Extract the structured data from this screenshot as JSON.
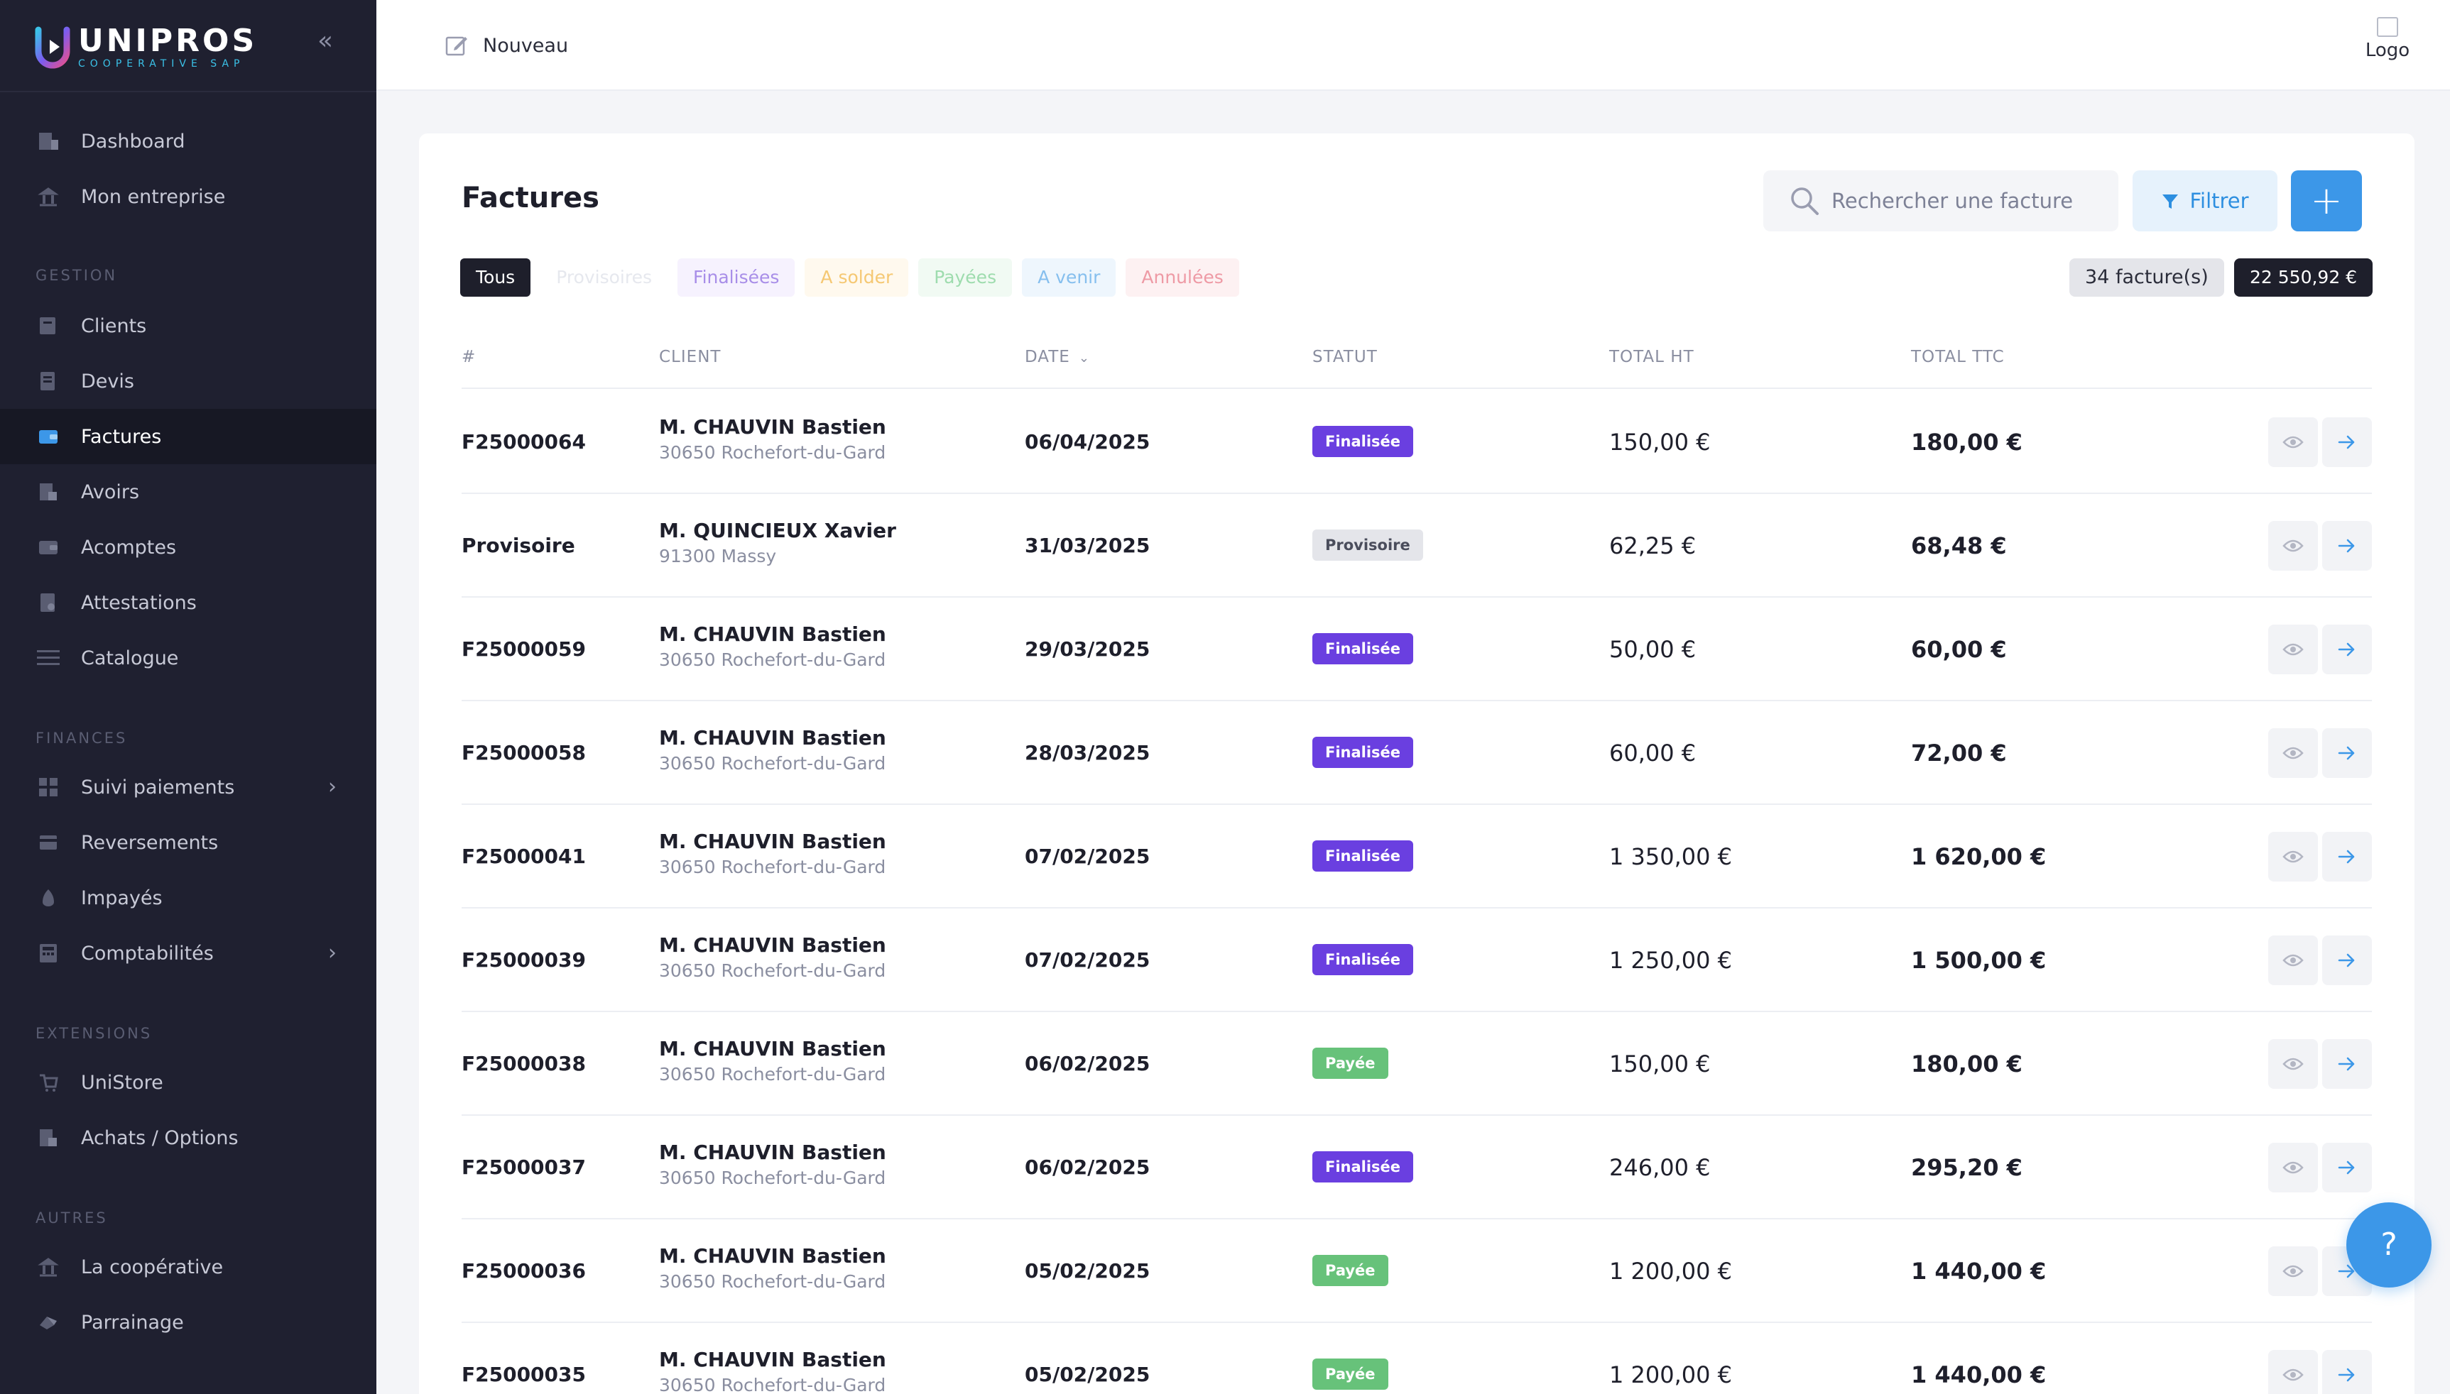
{
  "brand": {
    "name": "UNIPROS",
    "subtitle": "COOPERATIVE SAP"
  },
  "sidebar": {
    "top_items": [
      {
        "label": "Dashboard",
        "icon": "dashboard-icon"
      },
      {
        "label": "Mon entreprise",
        "icon": "building-icon"
      }
    ],
    "gestion_label": "GESTION",
    "gestion_items": [
      {
        "label": "Clients",
        "icon": "clients-icon"
      },
      {
        "label": "Devis",
        "icon": "quote-icon"
      },
      {
        "label": "Factures",
        "icon": "invoice-icon",
        "active": true
      },
      {
        "label": "Avoirs",
        "icon": "credit-note-icon"
      },
      {
        "label": "Acomptes",
        "icon": "deposit-icon"
      },
      {
        "label": "Attestations",
        "icon": "certificate-icon"
      },
      {
        "label": "Catalogue",
        "icon": "catalog-icon"
      }
    ],
    "finances_label": "FINANCES",
    "finances_items": [
      {
        "label": "Suivi paiements",
        "icon": "payments-icon",
        "has_submenu": true
      },
      {
        "label": "Reversements",
        "icon": "transfer-icon"
      },
      {
        "label": "Impayés",
        "icon": "unpaid-icon"
      },
      {
        "label": "Comptabilités",
        "icon": "accounting-icon",
        "has_submenu": true
      }
    ],
    "extensions_label": "EXTENSIONS",
    "extensions_items": [
      {
        "label": "UniStore",
        "icon": "store-icon"
      },
      {
        "label": "Achats / Options",
        "icon": "purchases-icon"
      }
    ],
    "autres_label": "AUTRES",
    "autres_items": [
      {
        "label": "La coopérative",
        "icon": "coop-icon"
      },
      {
        "label": "Parrainage",
        "icon": "referral-icon"
      }
    ]
  },
  "topbar": {
    "new_label": "Nouveau",
    "logo_alt": "Logo"
  },
  "page": {
    "title": "Factures",
    "search_placeholder": "Rechercher une facture",
    "filter_label": "Filtrer",
    "add_label": "+",
    "tabs": [
      "Tous",
      "Provisoires",
      "Finalisées",
      "A solder",
      "Payées",
      "A venir",
      "Annulées"
    ],
    "active_tab": "Tous",
    "count_label": "34 facture(s)",
    "total_label": "22 550,92 €"
  },
  "table": {
    "columns": [
      "#",
      "CLIENT",
      "DATE",
      "STATUT",
      "TOTAL HT",
      "TOTAL TTC"
    ],
    "sorted_column": "DATE",
    "rows": [
      {
        "num": "F25000064",
        "client": "M. CHAUVIN Bastien",
        "city": "30650 Rochefort-du-Gard",
        "date": "06/04/2025",
        "status": "Finalisée",
        "ht": "150,00 €",
        "ttc": "180,00 €"
      },
      {
        "num": "Provisoire",
        "client": "M. QUINCIEUX Xavier",
        "city": "91300 Massy",
        "date": "31/03/2025",
        "status": "Provisoire",
        "ht": "62,25 €",
        "ttc": "68,48 €"
      },
      {
        "num": "F25000059",
        "client": "M. CHAUVIN Bastien",
        "city": "30650 Rochefort-du-Gard",
        "date": "29/03/2025",
        "status": "Finalisée",
        "ht": "50,00 €",
        "ttc": "60,00 €"
      },
      {
        "num": "F25000058",
        "client": "M. CHAUVIN Bastien",
        "city": "30650 Rochefort-du-Gard",
        "date": "28/03/2025",
        "status": "Finalisée",
        "ht": "60,00 €",
        "ttc": "72,00 €"
      },
      {
        "num": "F25000041",
        "client": "M. CHAUVIN Bastien",
        "city": "30650 Rochefort-du-Gard",
        "date": "07/02/2025",
        "status": "Finalisée",
        "ht": "1 350,00 €",
        "ttc": "1 620,00 €"
      },
      {
        "num": "F25000039",
        "client": "M. CHAUVIN Bastien",
        "city": "30650 Rochefort-du-Gard",
        "date": "07/02/2025",
        "status": "Finalisée",
        "ht": "1 250,00 €",
        "ttc": "1 500,00 €"
      },
      {
        "num": "F25000038",
        "client": "M. CHAUVIN Bastien",
        "city": "30650 Rochefort-du-Gard",
        "date": "06/02/2025",
        "status": "Payée",
        "ht": "150,00 €",
        "ttc": "180,00 €"
      },
      {
        "num": "F25000037",
        "client": "M. CHAUVIN Bastien",
        "city": "30650 Rochefort-du-Gard",
        "date": "06/02/2025",
        "status": "Finalisée",
        "ht": "246,00 €",
        "ttc": "295,20 €"
      },
      {
        "num": "F25000036",
        "client": "M. CHAUVIN Bastien",
        "city": "30650 Rochefort-du-Gard",
        "date": "05/02/2025",
        "status": "Payée",
        "ht": "1 200,00 €",
        "ttc": "1 440,00 €"
      },
      {
        "num": "F25000035",
        "client": "M. CHAUVIN Bastien",
        "city": "30650 Rochefort-du-Gard",
        "date": "05/02/2025",
        "status": "Payée",
        "ht": "1 200,00 €",
        "ttc": "1 440,00 €"
      }
    ]
  },
  "help_label": "?",
  "colors": {
    "sidebar_bg": "#1f2030",
    "accent": "#3c97e8",
    "finalisee": "#6a3fe0",
    "payee": "#67c27a",
    "provisoire": "#e4e5ea"
  }
}
